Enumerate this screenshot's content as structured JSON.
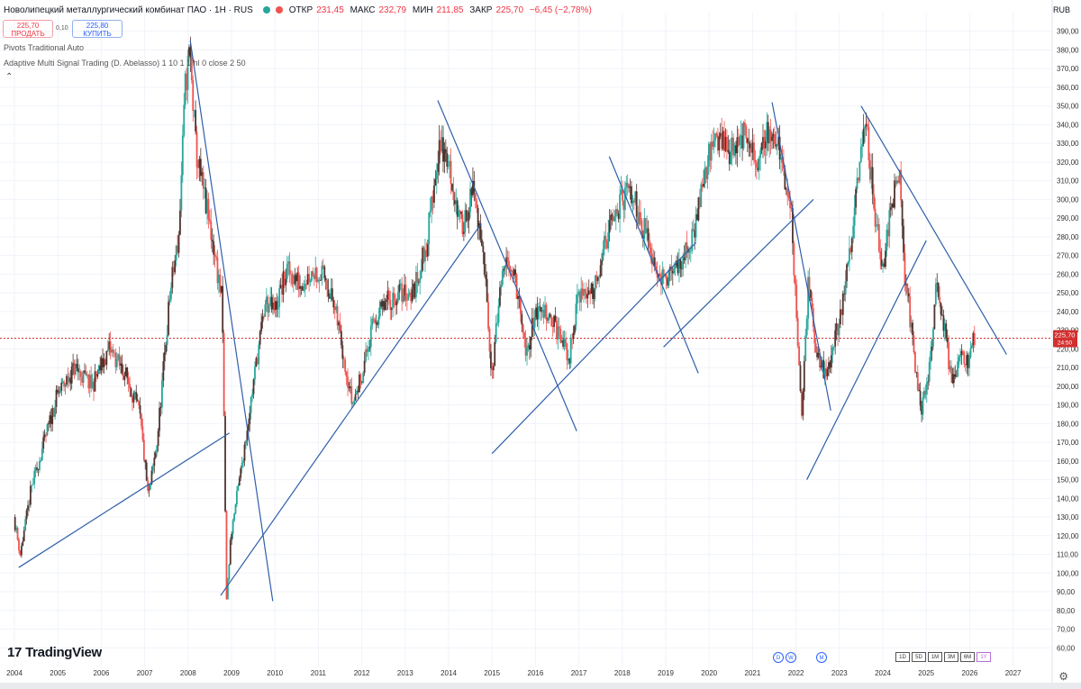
{
  "header": {
    "symbol": "Новолипецкий металлургический комбинат ПАО · 1Н · RUS",
    "ohlc": {
      "open_label": "ОТКР",
      "open": "231,45",
      "high_label": "МАКС",
      "high": "232,79",
      "low_label": "МИН",
      "low": "211,85",
      "close_label": "ЗАКР",
      "close": "225,70",
      "change": "−6,45 (−2,78%)"
    },
    "sell_price": "225,70",
    "sell_label": "ПРОДАТЬ",
    "spread": "0,10",
    "buy_price": "225,80",
    "buy_label": "КУПИТЬ",
    "indicator1": "Pivots Traditional Auto",
    "indicator2": "Adaptive Multi Signal Trading (D. Abelasso) 1 10 1 1 hl 0 close 2 50",
    "currency": "RUB"
  },
  "colors": {
    "up": "#26a69a",
    "down": "#ef5350",
    "dark": "#4e342e",
    "trendline": "#2f5faa",
    "price_line": "#d32f2f",
    "grid": "#f0f3fa"
  },
  "price_tag": {
    "value": "225,70",
    "sub": "24:50"
  },
  "brand": {
    "name": "TradingView",
    "mark": "17"
  },
  "nav": {
    "circles": [
      "D",
      "W",
      "M"
    ],
    "ranges": [
      "1D",
      "5D",
      "1M",
      "3M",
      "6M",
      "1Y"
    ]
  },
  "chart_data": {
    "type": "candlestick",
    "x_axis": {
      "labels": [
        "2004",
        "2005",
        "2006",
        "2007",
        "2008",
        "2009",
        "2010",
        "2011",
        "2012",
        "2013",
        "2014",
        "2015",
        "2016",
        "2017",
        "2018",
        "2019",
        "2020",
        "2021",
        "2022",
        "2023",
        "2024",
        "2025",
        "2026",
        "2027"
      ]
    },
    "y_axis": {
      "min": 50,
      "max": 400,
      "labels": [
        "390,00",
        "380,00",
        "370,00",
        "360,00",
        "350,00",
        "340,00",
        "330,00",
        "320,00",
        "310,00",
        "300,00",
        "290,00",
        "280,00",
        "270,00",
        "260,00",
        "250,00",
        "240,00",
        "230,00",
        "220,00",
        "210,00",
        "200,00",
        "190,00",
        "180,00",
        "170,00",
        "160,00",
        "150,00",
        "140,00",
        "130,00",
        "120,00",
        "110,00",
        "100,00",
        "90,00",
        "80,00",
        "70,00",
        "60,00"
      ]
    },
    "last_price": 225.7,
    "price_path": [
      [
        2004.0,
        130
      ],
      [
        2004.15,
        110
      ],
      [
        2004.4,
        145
      ],
      [
        2004.7,
        170
      ],
      [
        2005.0,
        195
      ],
      [
        2005.4,
        210
      ],
      [
        2005.8,
        200
      ],
      [
        2006.2,
        220
      ],
      [
        2006.6,
        205
      ],
      [
        2006.9,
        185
      ],
      [
        2007.1,
        140
      ],
      [
        2007.3,
        170
      ],
      [
        2007.6,
        250
      ],
      [
        2007.8,
        280
      ],
      [
        2007.95,
        360
      ],
      [
        2008.05,
        380
      ],
      [
        2008.2,
        325
      ],
      [
        2008.4,
        300
      ],
      [
        2008.6,
        275
      ],
      [
        2008.8,
        245
      ],
      [
        2008.85,
        168
      ],
      [
        2008.9,
        85
      ],
      [
        2009.0,
        120
      ],
      [
        2009.2,
        150
      ],
      [
        2009.4,
        182
      ],
      [
        2009.6,
        215
      ],
      [
        2009.8,
        245
      ],
      [
        2010.0,
        240
      ],
      [
        2010.3,
        262
      ],
      [
        2010.6,
        255
      ],
      [
        2010.9,
        262
      ],
      [
        2011.2,
        258
      ],
      [
        2011.5,
        230
      ],
      [
        2011.8,
        190
      ],
      [
        2012.0,
        205
      ],
      [
        2012.3,
        235
      ],
      [
        2012.6,
        245
      ],
      [
        2012.9,
        250
      ],
      [
        2013.2,
        250
      ],
      [
        2013.5,
        275
      ],
      [
        2013.8,
        330
      ],
      [
        2014.0,
        320
      ],
      [
        2014.3,
        285
      ],
      [
        2014.6,
        305
      ],
      [
        2014.9,
        250
      ],
      [
        2015.0,
        205
      ],
      [
        2015.2,
        250
      ],
      [
        2015.4,
        270
      ],
      [
        2015.6,
        250
      ],
      [
        2015.8,
        215
      ],
      [
        2016.0,
        240
      ],
      [
        2016.3,
        240
      ],
      [
        2016.6,
        225
      ],
      [
        2016.8,
        215
      ],
      [
        2017.0,
        250
      ],
      [
        2017.3,
        250
      ],
      [
        2017.6,
        275
      ],
      [
        2017.9,
        295
      ],
      [
        2018.2,
        305
      ],
      [
        2018.5,
        285
      ],
      [
        2018.8,
        265
      ],
      [
        2019.0,
        255
      ],
      [
        2019.3,
        265
      ],
      [
        2019.6,
        275
      ],
      [
        2019.9,
        315
      ],
      [
        2020.2,
        335
      ],
      [
        2020.5,
        325
      ],
      [
        2020.8,
        335
      ],
      [
        2021.1,
        318
      ],
      [
        2021.4,
        340
      ],
      [
        2021.7,
        320
      ],
      [
        2021.9,
        295
      ],
      [
        2022.0,
        250
      ],
      [
        2022.15,
        185
      ],
      [
        2022.3,
        255
      ],
      [
        2022.5,
        215
      ],
      [
        2022.7,
        205
      ],
      [
        2022.9,
        225
      ],
      [
        2023.1,
        245
      ],
      [
        2023.4,
        300
      ],
      [
        2023.6,
        345
      ],
      [
        2023.8,
        300
      ],
      [
        2024.0,
        260
      ],
      [
        2024.2,
        300
      ],
      [
        2024.4,
        310
      ],
      [
        2024.5,
        265
      ],
      [
        2024.7,
        225
      ],
      [
        2024.9,
        185
      ],
      [
        2025.1,
        210
      ],
      [
        2025.25,
        258
      ],
      [
        2025.45,
        230
      ],
      [
        2025.6,
        200
      ],
      [
        2025.8,
        215
      ],
      [
        2026.0,
        212
      ],
      [
        2026.1,
        225.7
      ]
    ],
    "trendlines": [
      [
        [
          2004.1,
          103
        ],
        [
          2008.95,
          175
        ]
      ],
      [
        [
          2008.05,
          385
        ],
        [
          2009.95,
          85
        ]
      ],
      [
        [
          2008.75,
          88
        ],
        [
          2014.75,
          287
        ]
      ],
      [
        [
          2013.75,
          353
        ],
        [
          2016.95,
          176
        ]
      ],
      [
        [
          2015.0,
          164
        ],
        [
          2019.7,
          277
        ]
      ],
      [
        [
          2017.7,
          323
        ],
        [
          2019.75,
          207
        ]
      ],
      [
        [
          2018.95,
          221
        ],
        [
          2022.4,
          300
        ]
      ],
      [
        [
          2021.45,
          352
        ],
        [
          2022.8,
          187
        ]
      ],
      [
        [
          2022.25,
          150
        ],
        [
          2025.0,
          278
        ]
      ],
      [
        [
          2023.5,
          350
        ],
        [
          2026.85,
          217
        ]
      ]
    ]
  }
}
